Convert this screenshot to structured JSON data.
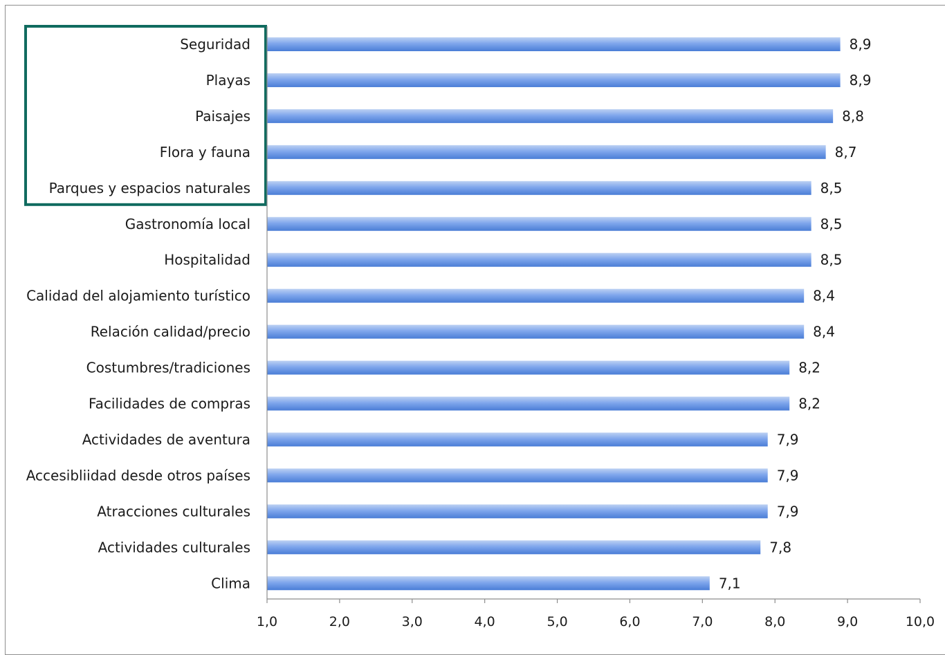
{
  "chart_data": {
    "type": "bar",
    "orientation": "horizontal",
    "categories": [
      "Seguridad",
      "Playas",
      "Paisajes",
      "Flora y fauna",
      "Parques y espacios naturales",
      "Gastronomía local",
      "Hospitalidad",
      "Calidad del alojamiento turístico",
      "Relación calidad/precio",
      "Costumbres/tradiciones",
      "Facilidades de compras",
      "Actividades de aventura",
      "Accesibliidad desde otros países",
      "Atracciones culturales",
      "Actividades culturales",
      "Clima"
    ],
    "values": [
      8.9,
      8.9,
      8.8,
      8.7,
      8.5,
      8.5,
      8.5,
      8.4,
      8.4,
      8.2,
      8.2,
      7.9,
      7.9,
      7.9,
      7.8,
      7.1
    ],
    "value_labels": [
      "8,9",
      "8,9",
      "8,8",
      "8,7",
      "8,5",
      "8,5",
      "8,5",
      "8,4",
      "8,4",
      "8,2",
      "8,2",
      "7,9",
      "7,9",
      "7,9",
      "7,8",
      "7,1"
    ],
    "xlim": [
      1.0,
      10.0
    ],
    "x_ticks": [
      1,
      2,
      3,
      4,
      5,
      6,
      7,
      8,
      9,
      10
    ],
    "x_tick_labels": [
      "1,0",
      "2,0",
      "3,0",
      "4,0",
      "5,0",
      "6,0",
      "7,0",
      "8,0",
      "9,0",
      "10,0"
    ],
    "grid": false,
    "legend": "none",
    "highlight": {
      "categories": [
        "Seguridad",
        "Playas",
        "Paisajes",
        "Flora y fauna",
        "Parques y espacios naturales"
      ],
      "border_color": "#106b5f"
    },
    "title": "",
    "xlabel": "",
    "ylabel": "",
    "colors": {
      "bar_top": "#bcd1f3",
      "bar_mid": "#7fa6ec",
      "bar_bottom": "#4a7dd6",
      "axis": "#8c8c8c"
    }
  }
}
